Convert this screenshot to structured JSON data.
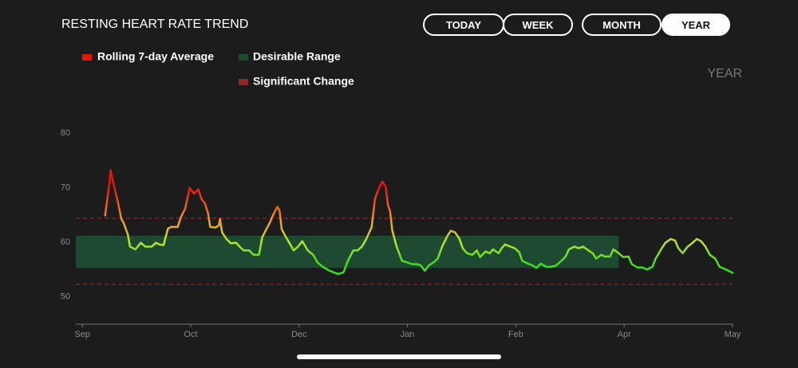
{
  "header": {
    "title": "RESTING HEART RATE TREND",
    "buttons": [
      {
        "label": "TODAY",
        "active": false
      },
      {
        "label": "WEEK",
        "active": false
      },
      {
        "label": "MONTH",
        "active": false
      },
      {
        "label": "YEAR",
        "active": true
      }
    ],
    "period_label": "YEAR"
  },
  "chart_data": {
    "type": "line",
    "series": [
      {
        "name": "Rolling 7-day Average",
        "gradient": [
          {
            "value": 70,
            "color": "#e3160f"
          },
          {
            "value": 64,
            "color": "#f39a1d"
          },
          {
            "value": 60,
            "color": "#b8e62a"
          },
          {
            "value": 56,
            "color": "#3ddc1e"
          }
        ],
        "x": [
          0.21,
          0.25,
          0.26,
          0.29,
          0.33,
          0.36,
          0.38,
          0.42,
          0.44,
          0.49,
          0.54,
          0.58,
          0.64,
          0.68,
          0.71,
          0.75,
          0.79,
          0.82,
          0.88,
          0.91,
          0.95,
          0.99,
          1.03,
          1.07,
          1.1,
          1.13,
          1.16,
          1.18,
          1.23,
          1.26,
          1.27,
          1.29,
          1.33,
          1.37,
          1.42,
          1.45,
          1.49,
          1.54,
          1.58,
          1.63,
          1.66,
          1.69,
          1.73,
          1.76,
          1.8,
          1.82,
          1.84,
          1.88,
          1.91,
          1.95,
          1.99,
          2.03,
          2.08,
          2.13,
          2.17,
          2.22,
          2.28,
          2.32,
          2.36,
          2.41,
          2.45,
          2.5,
          2.54,
          2.58,
          2.62,
          2.67,
          2.7,
          2.74,
          2.77,
          2.8,
          2.82,
          2.84,
          2.86,
          2.9,
          2.95,
          3.0,
          3.04,
          3.09,
          3.12,
          3.16,
          3.2,
          3.24,
          3.28,
          3.32,
          3.37,
          3.4,
          3.44,
          3.48,
          3.51,
          3.55,
          3.6,
          3.64,
          3.67,
          3.72,
          3.76,
          3.79,
          3.84,
          3.87,
          3.9,
          3.95,
          3.99,
          4.03,
          4.06,
          4.11,
          4.15,
          4.19,
          4.23,
          4.28,
          4.32,
          4.37,
          4.42,
          4.46,
          4.49,
          4.54,
          4.58,
          4.62,
          4.67,
          4.71,
          4.74,
          4.79,
          4.82,
          4.87,
          4.9,
          4.95,
          4.99,
          5.04,
          5.07,
          5.12,
          5.17,
          5.21,
          5.26,
          5.29,
          5.34,
          5.38,
          5.43,
          5.47,
          5.5,
          5.54,
          5.58,
          5.63,
          5.67,
          5.71,
          5.75,
          5.79,
          5.84,
          5.88,
          5.93,
          5.96,
          6.0
        ],
        "values": [
          64.9,
          70.8,
          73.2,
          70.5,
          67.2,
          64.3,
          63.6,
          61.4,
          59.2,
          58.7,
          59.9,
          59.2,
          59.2,
          59.9,
          59.6,
          59.5,
          62.5,
          62.8,
          62.8,
          64.6,
          66.2,
          70.0,
          68.9,
          69.7,
          67.9,
          67.2,
          65.3,
          62.8,
          62.7,
          63.1,
          64.3,
          61.8,
          60.6,
          59.8,
          59.9,
          59.2,
          58.5,
          58.5,
          57.7,
          57.7,
          60.9,
          62.1,
          63.6,
          65.0,
          66.5,
          65.8,
          62.4,
          60.9,
          59.9,
          58.5,
          59.2,
          60.2,
          58.5,
          57.7,
          56.3,
          55.5,
          54.8,
          54.5,
          54.2,
          54.5,
          56.6,
          58.5,
          58.5,
          59.2,
          60.6,
          62.8,
          67.9,
          70.1,
          71.1,
          70.1,
          66.8,
          65.7,
          62.1,
          59.2,
          56.6,
          56.3,
          56.0,
          56.0,
          55.8,
          54.8,
          55.8,
          56.3,
          57.0,
          59.2,
          61.2,
          62.1,
          61.8,
          60.6,
          58.9,
          58.0,
          57.7,
          58.5,
          57.3,
          58.3,
          58.0,
          58.7,
          58.0,
          58.9,
          59.6,
          59.2,
          58.9,
          58.2,
          56.6,
          56.1,
          55.8,
          55.3,
          56.1,
          55.5,
          55.5,
          55.7,
          56.6,
          57.4,
          58.7,
          59.2,
          58.9,
          59.2,
          58.5,
          58.0,
          57.0,
          57.7,
          57.4,
          57.4,
          58.7,
          58.0,
          57.3,
          57.4,
          56.0,
          55.4,
          55.4,
          55.0,
          55.5,
          57.0,
          58.7,
          59.9,
          60.6,
          60.3,
          58.9,
          58.0,
          59.1,
          59.9,
          60.6,
          60.2,
          59.2,
          57.7,
          57.0,
          55.5,
          55.1,
          54.8,
          54.4
        ]
      }
    ],
    "desirable_range": {
      "name": "Desirable Range",
      "x": [
        -0.06,
        4.95
      ],
      "y": [
        55.3,
        61.2
      ],
      "color": "#1e4a31"
    },
    "significant_change": {
      "name": "Significant Change",
      "values": [
        52.3,
        64.4
      ],
      "color": "#8a2b2b"
    },
    "xlim": [
      -0.06,
      6
    ],
    "xticks": [
      {
        "value": 0,
        "label": "Sep"
      },
      {
        "value": 1,
        "label": "Oct"
      },
      {
        "value": 2,
        "label": "Dec"
      },
      {
        "value": 3,
        "label": "Jan"
      },
      {
        "value": 4,
        "label": "Feb"
      },
      {
        "value": 5,
        "label": "Apr"
      },
      {
        "value": 6,
        "label": "May"
      }
    ],
    "ylim": [
      45,
      80
    ],
    "yticks": [
      50,
      60,
      70,
      80
    ],
    "grid": false
  }
}
